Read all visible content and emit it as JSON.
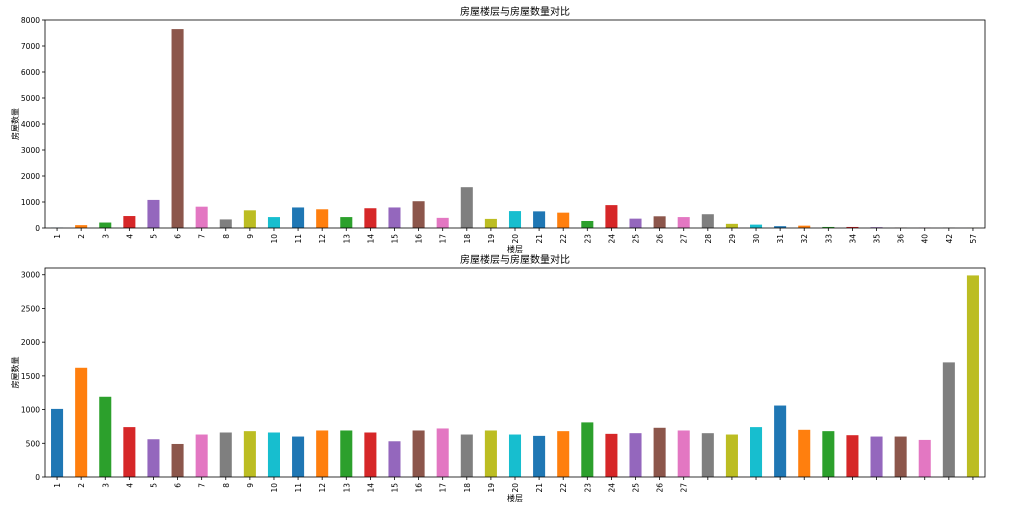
{
  "chart_data": [
    {
      "type": "bar",
      "title": "房屋楼层与房屋数量对比",
      "xlabel": "楼层",
      "ylabel": "房屋数量",
      "ylim": [
        0,
        8000
      ],
      "yticks": [
        0,
        1000,
        2000,
        3000,
        4000,
        5000,
        6000,
        7000,
        8000
      ],
      "categories": [
        "1",
        "2",
        "3",
        "4",
        "5",
        "6",
        "7",
        "8",
        "9",
        "10",
        "11",
        "12",
        "13",
        "14",
        "15",
        "16",
        "17",
        "18",
        "19",
        "20",
        "21",
        "22",
        "23",
        "24",
        "25",
        "26",
        "27",
        "28",
        "29",
        "30",
        "31",
        "32",
        "33",
        "34",
        "35",
        "36",
        "40",
        "42",
        "57"
      ],
      "values": [
        10,
        110,
        210,
        460,
        1080,
        7650,
        820,
        330,
        680,
        420,
        790,
        720,
        420,
        760,
        790,
        1030,
        390,
        1570,
        350,
        650,
        640,
        590,
        270,
        880,
        360,
        450,
        420,
        530,
        160,
        130,
        70,
        90,
        40,
        40,
        30,
        10,
        10,
        10,
        5
      ],
      "grid": false,
      "colors": [
        "#1f77b4",
        "#ff7f0e",
        "#2ca02c",
        "#d62728",
        "#9467bd",
        "#8c564b",
        "#e377c2",
        "#7f7f7f",
        "#bcbd22",
        "#17becf"
      ]
    },
    {
      "type": "bar",
      "title": "房屋楼层与房屋数量对比",
      "xlabel": "楼层",
      "ylabel": "房屋数量",
      "ylim": [
        0,
        3100
      ],
      "yticks": [
        0,
        500,
        1000,
        1500,
        2000,
        2500,
        3000
      ],
      "categories": [
        "1",
        "2",
        "3",
        "4",
        "5",
        "6",
        "7",
        "8",
        "9",
        "10",
        "11",
        "12",
        "13",
        "14",
        "15",
        "16",
        "17",
        "18",
        "19",
        "20",
        "21",
        "22",
        "23",
        "24",
        "25",
        "26",
        "27",
        "",
        "",
        "",
        "",
        "",
        "",
        "",
        "",
        "",
        "",
        "",
        ""
      ],
      "values": [
        1010,
        1620,
        1190,
        740,
        560,
        490,
        630,
        660,
        680,
        660,
        600,
        690,
        690,
        660,
        530,
        690,
        720,
        630,
        690,
        630,
        610,
        680,
        810,
        640,
        650,
        730,
        690,
        650,
        630,
        740,
        1060,
        700,
        680,
        620,
        600,
        600,
        550,
        1700,
        2990
      ],
      "grid": false,
      "colors": [
        "#1f77b4",
        "#ff7f0e",
        "#2ca02c",
        "#d62728",
        "#9467bd",
        "#8c564b",
        "#e377c2",
        "#7f7f7f",
        "#bcbd22",
        "#17becf"
      ]
    }
  ]
}
